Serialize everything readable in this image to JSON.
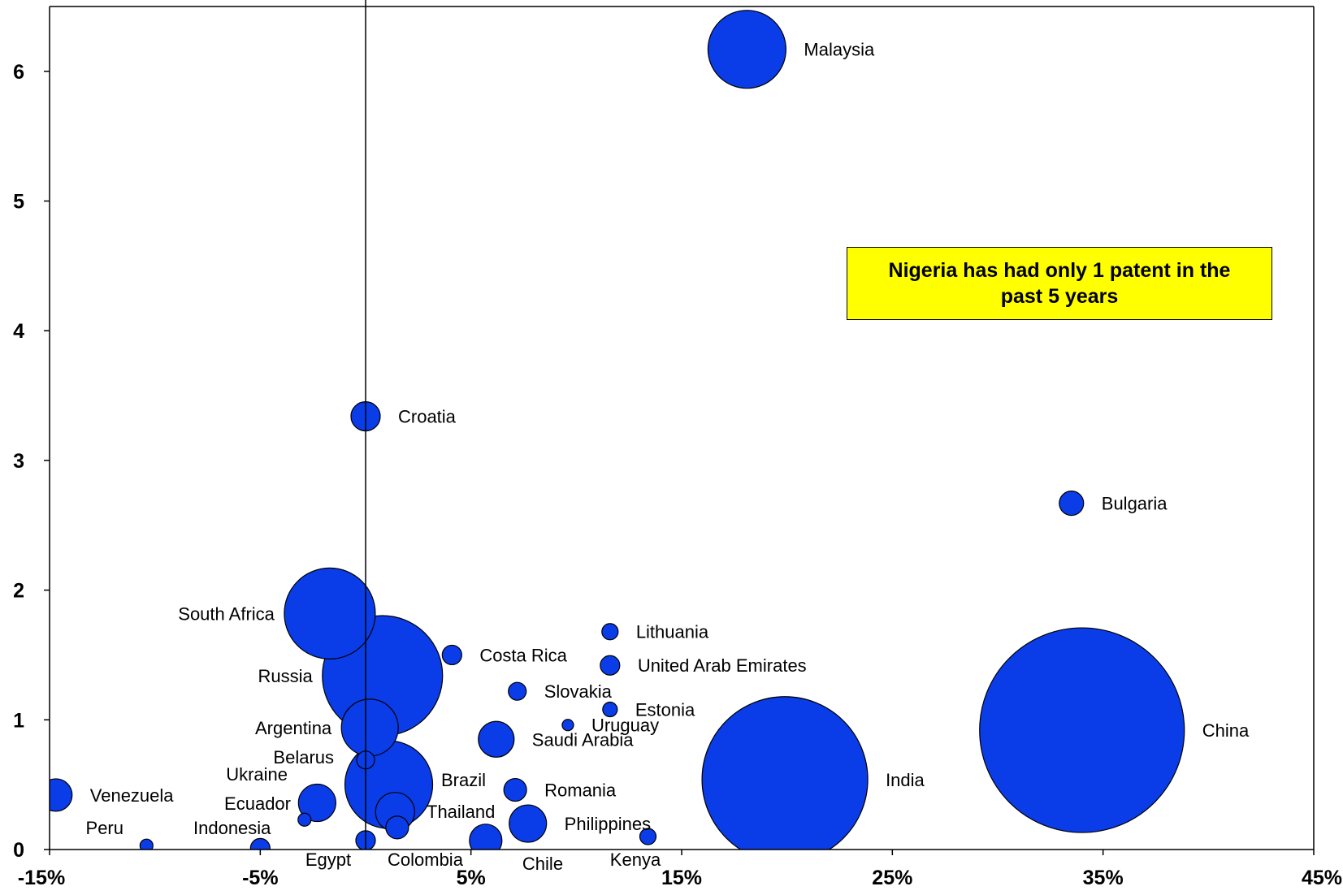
{
  "chart_data": {
    "type": "bubble",
    "xlim": [
      -0.15,
      0.45
    ],
    "ylim": [
      0,
      6.5
    ],
    "x_ticks": [
      {
        "value": -0.15,
        "label": "-15%"
      },
      {
        "value": -0.05,
        "label": "-5%"
      },
      {
        "value": 0.05,
        "label": "5%"
      },
      {
        "value": 0.15,
        "label": "15%"
      },
      {
        "value": 0.25,
        "label": "25%"
      },
      {
        "value": 0.35,
        "label": "35%"
      },
      {
        "value": 0.45,
        "label": "45%"
      }
    ],
    "y_ticks": [
      {
        "value": 0,
        "label": "0"
      },
      {
        "value": 1,
        "label": "1"
      },
      {
        "value": 2,
        "label": "2"
      },
      {
        "value": 3,
        "label": "3"
      },
      {
        "value": 4,
        "label": "4"
      },
      {
        "value": 5,
        "label": "5"
      },
      {
        "value": 6,
        "label": "6"
      }
    ],
    "reference_line_x": 0.0,
    "bubble_color": "#0a3ce8",
    "points": [
      {
        "name": "Malaysia",
        "x": 0.181,
        "y": 6.17,
        "r": 48,
        "label_side": "right"
      },
      {
        "name": "Croatia",
        "x": 0.0,
        "y": 3.34,
        "r": 18,
        "label_side": "right"
      },
      {
        "name": "Bulgaria",
        "x": 0.335,
        "y": 2.67,
        "r": 15,
        "label_side": "right"
      },
      {
        "name": "South Africa",
        "x": -0.017,
        "y": 1.82,
        "r": 56,
        "label_side": "left"
      },
      {
        "name": "Lithuania",
        "x": 0.116,
        "y": 1.68,
        "r": 10,
        "label_side": "right"
      },
      {
        "name": "Costa Rica",
        "x": 0.041,
        "y": 1.5,
        "r": 12,
        "label_side": "right"
      },
      {
        "name": "United Arab Emirates",
        "x": 0.116,
        "y": 1.42,
        "r": 12,
        "label_side": "right"
      },
      {
        "name": "Russia",
        "x": 0.008,
        "y": 1.34,
        "r": 74,
        "label_side": "left"
      },
      {
        "name": "Slovakia",
        "x": 0.072,
        "y": 1.22,
        "r": 11,
        "label_side": "right"
      },
      {
        "name": "Estonia",
        "x": 0.116,
        "y": 1.08,
        "r": 9,
        "label_side": "right"
      },
      {
        "name": "Uruguay",
        "x": 0.096,
        "y": 0.96,
        "r": 7,
        "label_side": "right"
      },
      {
        "name": "Argentina",
        "x": 0.002,
        "y": 0.94,
        "r": 35,
        "label_side": "left"
      },
      {
        "name": "China",
        "x": 0.34,
        "y": 0.92,
        "r": 126,
        "label_side": "right"
      },
      {
        "name": "Saudi Arabia",
        "x": 0.062,
        "y": 0.85,
        "r": 22,
        "label_side": "right"
      },
      {
        "name": "Belarus",
        "x": 0.0,
        "y": 0.69,
        "r": 11,
        "label_side": "left"
      },
      {
        "name": "India",
        "x": 0.199,
        "y": 0.54,
        "r": 102,
        "label_side": "right"
      },
      {
        "name": "Brazil",
        "x": 0.011,
        "y": 0.5,
        "r": 54,
        "label_side": "right"
      },
      {
        "name": "Romania",
        "x": 0.071,
        "y": 0.46,
        "r": 14,
        "label_side": "right"
      },
      {
        "name": "Venezuela",
        "x": -0.147,
        "y": 0.42,
        "r": 20,
        "label_side": "right"
      },
      {
        "name": "Ukraine",
        "x": -0.023,
        "y": 0.36,
        "r": 23,
        "label_side": "left"
      },
      {
        "name": "Thailand",
        "x": 0.014,
        "y": 0.29,
        "r": 24,
        "label_side": "right"
      },
      {
        "name": "Ecuador",
        "x": -0.029,
        "y": 0.23,
        "r": 8,
        "label_side": "left"
      },
      {
        "name": "Philippines",
        "x": 0.077,
        "y": 0.2,
        "r": 23,
        "label_side": "right"
      },
      {
        "name": "Indonesia",
        "x": 0.015,
        "y": 0.17,
        "r": 14,
        "label_side": "none"
      },
      {
        "name": "Kenya",
        "x": 0.134,
        "y": 0.1,
        "r": 10,
        "label_side": "below"
      },
      {
        "name": "Egypt",
        "x": 0.0,
        "y": 0.07,
        "r": 12,
        "label_side": "below"
      },
      {
        "name": "Chile",
        "x": 0.057,
        "y": 0.07,
        "r": 20,
        "label_side": "below"
      },
      {
        "name": "Peru",
        "x": -0.104,
        "y": 0.03,
        "r": 8,
        "label_side": "left"
      },
      {
        "name": "Colombia",
        "x": -0.05,
        "y": 0.01,
        "r": 12,
        "label_side": "none"
      }
    ],
    "free_labels": [
      "Indonesia",
      "Colombia"
    ],
    "annotation": "Nigeria has had only 1 patent in the past 5 years"
  }
}
